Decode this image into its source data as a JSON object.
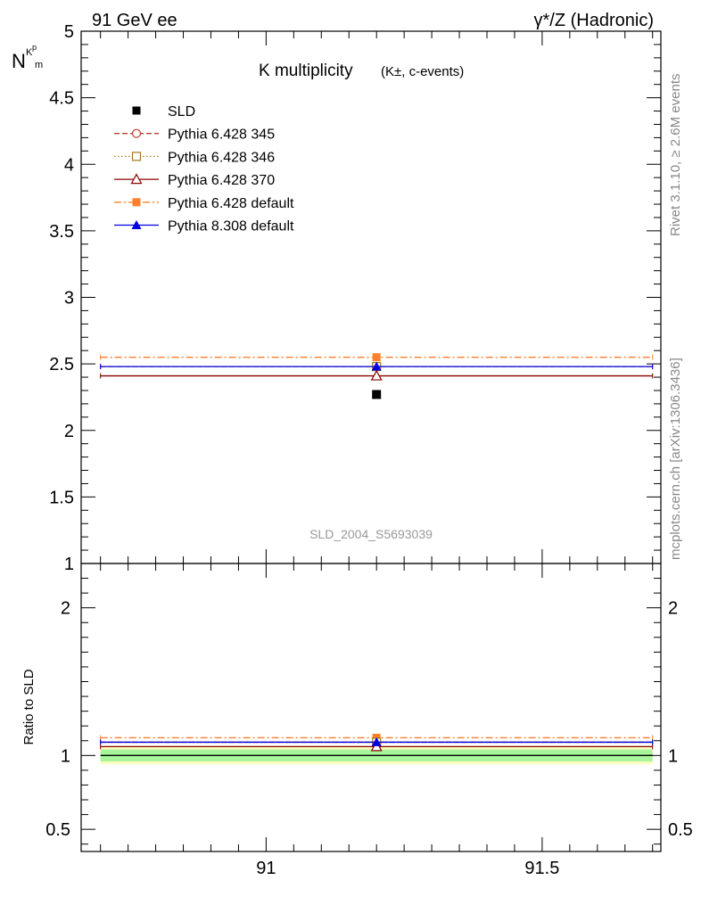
{
  "header": {
    "left": "91 GeV ee",
    "right": "γ*/Z (Hadronic)"
  },
  "side_labels": {
    "rivet": "Rivet 3.1.10, ≥ 2.6M events",
    "mcplots": "mcplots.cern.ch [arXiv:1306.3436]"
  },
  "watermark": "SLD_2004_S5693039",
  "colors": {
    "SLD": "#000000",
    "Pythia 6.428 345": "#c0392b",
    "Pythia 6.428 346": "#a07a1e",
    "Pythia 6.428 370": "#8b0000",
    "Pythia 6.428 default": "#ff7f2a",
    "Pythia 8.308 default": "#0000e0",
    "band_green": "#a6f59a",
    "band_yellow": "#fbfcc0"
  },
  "chart_data": [
    {
      "type": "scatter",
      "title": "K multiplicity",
      "title_sub": "(K±, c-events)",
      "ylabel_main": "N",
      "ylabel_sub": "K",
      "ylabel_sup": "p",
      "ylabel_sub2": "m",
      "xlim": [
        90.665,
        91.715
      ],
      "ylim": [
        1.0,
        5.0
      ],
      "yticks": [
        1,
        1.5,
        2,
        2.5,
        3,
        3.5,
        4,
        4.5,
        5
      ],
      "ytick_labels": [
        "1",
        "1.5",
        "2",
        "2.5",
        "3",
        "3.5",
        "4",
        "4.5",
        "5"
      ],
      "legend_position": "top-left",
      "series": [
        {
          "name": "SLD",
          "marker": "square-filled",
          "line": "none",
          "x": [
            91.2
          ],
          "y": [
            2.27
          ],
          "xerr": [
            0.5
          ]
        },
        {
          "name": "Pythia 6.428 345",
          "marker": "circle-open",
          "line": "dashed",
          "x": [
            91.2
          ],
          "y": [
            2.48
          ],
          "xerr": [
            0.5
          ]
        },
        {
          "name": "Pythia 6.428 346",
          "marker": "square-open",
          "line": "dotted",
          "x": [
            91.2
          ],
          "y": [
            2.48
          ],
          "xerr": [
            0.5
          ]
        },
        {
          "name": "Pythia 6.428 370",
          "marker": "triangle-open",
          "line": "solid",
          "x": [
            91.2
          ],
          "y": [
            2.41
          ],
          "xerr": [
            0.5
          ]
        },
        {
          "name": "Pythia 6.428 default",
          "marker": "square-filled",
          "line": "dashdot",
          "x": [
            91.2
          ],
          "y": [
            2.55
          ],
          "xerr": [
            0.5
          ]
        },
        {
          "name": "Pythia 8.308 default",
          "marker": "triangle-filled",
          "line": "solid",
          "x": [
            91.2
          ],
          "y": [
            2.48
          ],
          "xerr": [
            0.5
          ]
        }
      ]
    },
    {
      "type": "scatter",
      "ylabel": "Ratio to SLD",
      "xlim": [
        90.665,
        91.715
      ],
      "ylim": [
        0.35,
        2.3
      ],
      "yticks": [
        0.5,
        1,
        2
      ],
      "ytick_labels": [
        "0.5",
        "1",
        "2"
      ],
      "xticks": [
        91,
        91.5
      ],
      "xtick_labels": [
        "91",
        "91.5"
      ],
      "bands": [
        {
          "name": "yellow",
          "y_low": 0.94,
          "y_high": 1.06
        },
        {
          "name": "green",
          "y_low": 0.96,
          "y_high": 1.04
        }
      ],
      "reference": 1.0,
      "series": [
        {
          "name": "Pythia 6.428 345",
          "x": [
            91.2
          ],
          "y": [
            1.09
          ]
        },
        {
          "name": "Pythia 6.428 346",
          "x": [
            91.2
          ],
          "y": [
            1.09
          ]
        },
        {
          "name": "Pythia 6.428 370",
          "x": [
            91.2
          ],
          "y": [
            1.06
          ]
        },
        {
          "name": "Pythia 6.428 default",
          "x": [
            91.2
          ],
          "y": [
            1.12
          ]
        },
        {
          "name": "Pythia 8.308 default",
          "x": [
            91.2
          ],
          "y": [
            1.09
          ]
        }
      ]
    }
  ]
}
